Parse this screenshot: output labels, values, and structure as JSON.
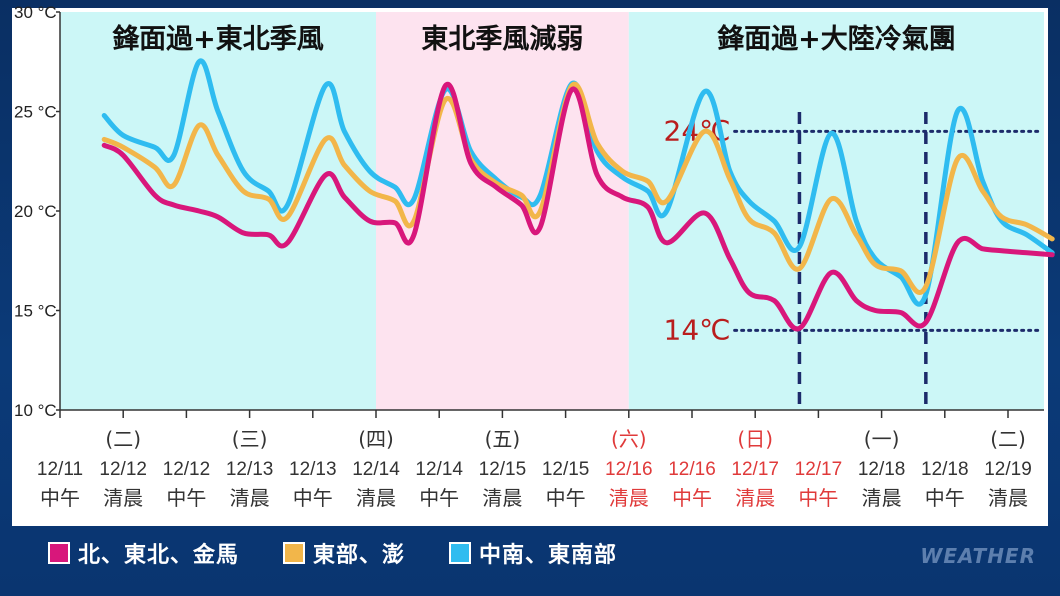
{
  "chart_data": {
    "type": "line",
    "ylim": [
      10,
      30
    ],
    "yticks": [
      10,
      15,
      20,
      25,
      30
    ],
    "ytick_labels": [
      "10 °C",
      "15 °C",
      "20 °C",
      "25 °C",
      "30 °C"
    ],
    "grid": false,
    "legend_position": "bottom-left",
    "categories": [
      {
        "top": "",
        "date": "12/11",
        "time": "中午",
        "holiday": false
      },
      {
        "top": "(二)",
        "date": "12/12",
        "time": "清晨",
        "holiday": false
      },
      {
        "top": "",
        "date": "12/12",
        "time": "中午",
        "holiday": false
      },
      {
        "top": "(三)",
        "date": "12/13",
        "time": "清晨",
        "holiday": false
      },
      {
        "top": "",
        "date": "12/13",
        "time": "中午",
        "holiday": false
      },
      {
        "top": "(四)",
        "date": "12/14",
        "time": "清晨",
        "holiday": false
      },
      {
        "top": "",
        "date": "12/14",
        "time": "中午",
        "holiday": false
      },
      {
        "top": "(五)",
        "date": "12/15",
        "time": "清晨",
        "holiday": false
      },
      {
        "top": "",
        "date": "12/15",
        "time": "中午",
        "holiday": false
      },
      {
        "top": "(六)",
        "date": "12/16",
        "time": "清晨",
        "holiday": true
      },
      {
        "top": "",
        "date": "12/16",
        "time": "中午",
        "holiday": true
      },
      {
        "top": "(日)",
        "date": "12/17",
        "time": "清晨",
        "holiday": true
      },
      {
        "top": "",
        "date": "12/17",
        "time": "中午",
        "holiday": true
      },
      {
        "top": "(一)",
        "date": "12/18",
        "time": "清晨",
        "holiday": false
      },
      {
        "top": "",
        "date": "12/18",
        "time": "中午",
        "holiday": false
      },
      {
        "top": "(二)",
        "date": "12/19",
        "time": "清晨",
        "holiday": false
      }
    ],
    "periods": [
      {
        "label": "鋒面過+東北季風",
        "start": 0,
        "end": 5,
        "color": "#ccf7f7"
      },
      {
        "label": "東北季風減弱",
        "start": 5,
        "end": 9,
        "color": "#fde3ef"
      },
      {
        "label": "鋒面過+大陸冷氣團",
        "start": 9,
        "end": 16.6,
        "color": "#ccf7f7"
      }
    ],
    "series": [
      {
        "name": "中南、東南部",
        "color": "#2fbcf0",
        "points": [
          [
            0.7,
            24.8
          ],
          [
            1,
            23.8
          ],
          [
            1.5,
            23.2
          ],
          [
            1.8,
            22.8
          ],
          [
            2.2,
            27.5
          ],
          [
            2.5,
            25
          ],
          [
            2.9,
            22
          ],
          [
            3.3,
            21
          ],
          [
            3.6,
            20.3
          ],
          [
            4.2,
            26.3
          ],
          [
            4.5,
            24
          ],
          [
            4.9,
            22
          ],
          [
            5.3,
            21.2
          ],
          [
            5.6,
            20.6
          ],
          [
            6.1,
            26.1
          ],
          [
            6.5,
            23
          ],
          [
            6.9,
            21.6
          ],
          [
            7.3,
            20.7
          ],
          [
            7.6,
            20.8
          ],
          [
            8.1,
            26.4
          ],
          [
            8.5,
            23
          ],
          [
            8.9,
            21.7
          ],
          [
            9.3,
            21
          ],
          [
            9.6,
            20
          ],
          [
            10.2,
            26
          ],
          [
            10.6,
            22
          ],
          [
            10.9,
            20.5
          ],
          [
            11.3,
            19.5
          ],
          [
            11.7,
            18.2
          ],
          [
            12.2,
            23.9
          ],
          [
            12.6,
            19.5
          ],
          [
            12.9,
            17.6
          ],
          [
            13.3,
            16.7
          ],
          [
            13.7,
            15.8
          ],
          [
            14.2,
            25
          ],
          [
            14.6,
            21.5
          ],
          [
            14.9,
            19.5
          ],
          [
            15.3,
            18.8
          ],
          [
            15.7,
            17.9
          ]
        ]
      },
      {
        "name": "東部、澎",
        "color": "#f2b64a",
        "points": [
          [
            0.7,
            23.6
          ],
          [
            1,
            23.2
          ],
          [
            1.5,
            22.2
          ],
          [
            1.8,
            21.3
          ],
          [
            2.2,
            24.3
          ],
          [
            2.5,
            22.8
          ],
          [
            2.9,
            21
          ],
          [
            3.3,
            20.6
          ],
          [
            3.6,
            19.7
          ],
          [
            4.2,
            23.6
          ],
          [
            4.5,
            22.3
          ],
          [
            4.9,
            21
          ],
          [
            5.3,
            20.5
          ],
          [
            5.6,
            19.5
          ],
          [
            6.1,
            25.6
          ],
          [
            6.5,
            22.6
          ],
          [
            6.9,
            21.4
          ],
          [
            7.3,
            20.8
          ],
          [
            7.6,
            20
          ],
          [
            8.1,
            26.3
          ],
          [
            8.5,
            23.4
          ],
          [
            8.9,
            22
          ],
          [
            9.3,
            21.5
          ],
          [
            9.6,
            20.5
          ],
          [
            10.2,
            24
          ],
          [
            10.6,
            21.6
          ],
          [
            10.9,
            19.6
          ],
          [
            11.3,
            18.9
          ],
          [
            11.7,
            17.1
          ],
          [
            12.2,
            20.6
          ],
          [
            12.6,
            18.8
          ],
          [
            12.9,
            17.3
          ],
          [
            13.3,
            17
          ],
          [
            13.7,
            16.2
          ],
          [
            14.2,
            22.6
          ],
          [
            14.6,
            21
          ],
          [
            14.9,
            19.7
          ],
          [
            15.3,
            19.3
          ],
          [
            15.7,
            18.6
          ]
        ]
      },
      {
        "name": "北、東北、金馬",
        "color": "#d8177b",
        "points": [
          [
            0.7,
            23.3
          ],
          [
            1,
            22.8
          ],
          [
            1.5,
            20.8
          ],
          [
            1.8,
            20.3
          ],
          [
            2.2,
            20.0
          ],
          [
            2.5,
            19.7
          ],
          [
            2.9,
            18.9
          ],
          [
            3.3,
            18.8
          ],
          [
            3.6,
            18.4
          ],
          [
            4.2,
            21.8
          ],
          [
            4.5,
            20.7
          ],
          [
            4.9,
            19.5
          ],
          [
            5.3,
            19.4
          ],
          [
            5.6,
            18.8
          ],
          [
            6.1,
            26.3
          ],
          [
            6.5,
            22.4
          ],
          [
            6.9,
            21.2
          ],
          [
            7.3,
            20.3
          ],
          [
            7.6,
            19.2
          ],
          [
            8.1,
            26.1
          ],
          [
            8.5,
            21.8
          ],
          [
            8.9,
            20.7
          ],
          [
            9.3,
            20.2
          ],
          [
            9.6,
            18.4
          ],
          [
            10.2,
            19.9
          ],
          [
            10.6,
            17.6
          ],
          [
            10.9,
            15.9
          ],
          [
            11.3,
            15.5
          ],
          [
            11.7,
            14.1
          ],
          [
            12.2,
            16.9
          ],
          [
            12.6,
            15.5
          ],
          [
            12.9,
            15.0
          ],
          [
            13.3,
            14.9
          ],
          [
            13.7,
            14.4
          ],
          [
            14.2,
            18.4
          ],
          [
            14.6,
            18.1
          ],
          [
            14.9,
            18.0
          ],
          [
            15.3,
            17.9
          ],
          [
            15.7,
            17.8
          ]
        ]
      }
    ],
    "annotations": [
      {
        "text": "24℃",
        "value": 24,
        "color": "#b91d1d",
        "x_start": 10.2,
        "x_end": 15.5
      },
      {
        "text": "14℃",
        "value": 14,
        "color": "#b91d1d",
        "x_start": 10.2,
        "x_end": 15.5
      }
    ],
    "vertical_markers": [
      11.7,
      13.7
    ],
    "marker_color": "#1d2b6b"
  },
  "legend": [
    {
      "label": "北、東北、金馬",
      "color": "#d8177b"
    },
    {
      "label": "東部、澎",
      "color": "#f2b64a"
    },
    {
      "label": "中南、東南部",
      "color": "#2fbcf0"
    }
  ],
  "watermark": "WEATHER"
}
